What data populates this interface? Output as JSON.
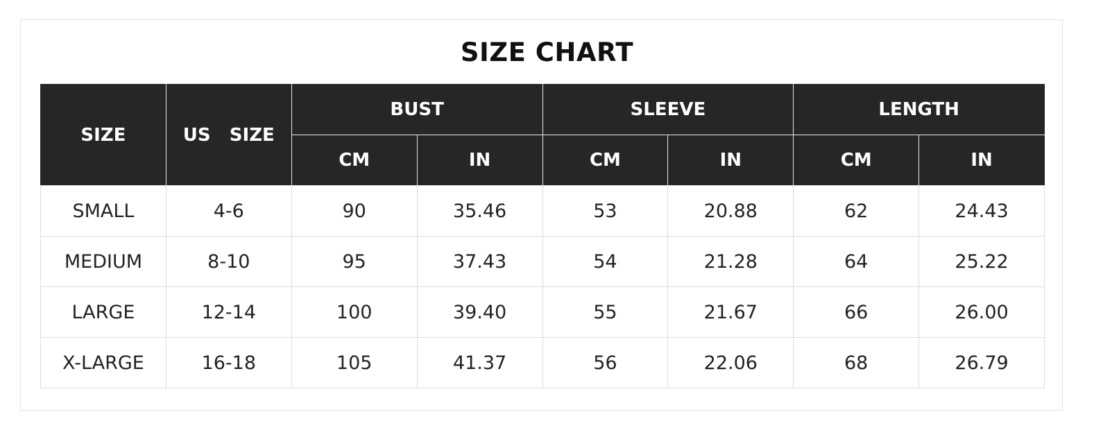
{
  "title": "SIZE CHART",
  "headers": {
    "size": "SIZE",
    "us_size": "US   SIZE",
    "groups": [
      "BUST",
      "SLEEVE",
      "LENGTH"
    ],
    "units": [
      "CM",
      "IN",
      "CM",
      "IN",
      "CM",
      "IN"
    ]
  },
  "rows": [
    [
      "SMALL",
      "4-6",
      "90",
      "35.46",
      "53",
      "20.88",
      "62",
      "24.43"
    ],
    [
      "MEDIUM",
      "8-10",
      "95",
      "37.43",
      "54",
      "21.28",
      "64",
      "25.22"
    ],
    [
      "LARGE",
      "12-14",
      "100",
      "39.40",
      "55",
      "21.67",
      "66",
      "26.00"
    ],
    [
      "X-LARGE",
      "16-18",
      "105",
      "41.37",
      "56",
      "22.06",
      "68",
      "26.79"
    ]
  ],
  "colors": {
    "header_bg": "#262626",
    "header_text": "#ffffff",
    "body_text": "#222222"
  }
}
